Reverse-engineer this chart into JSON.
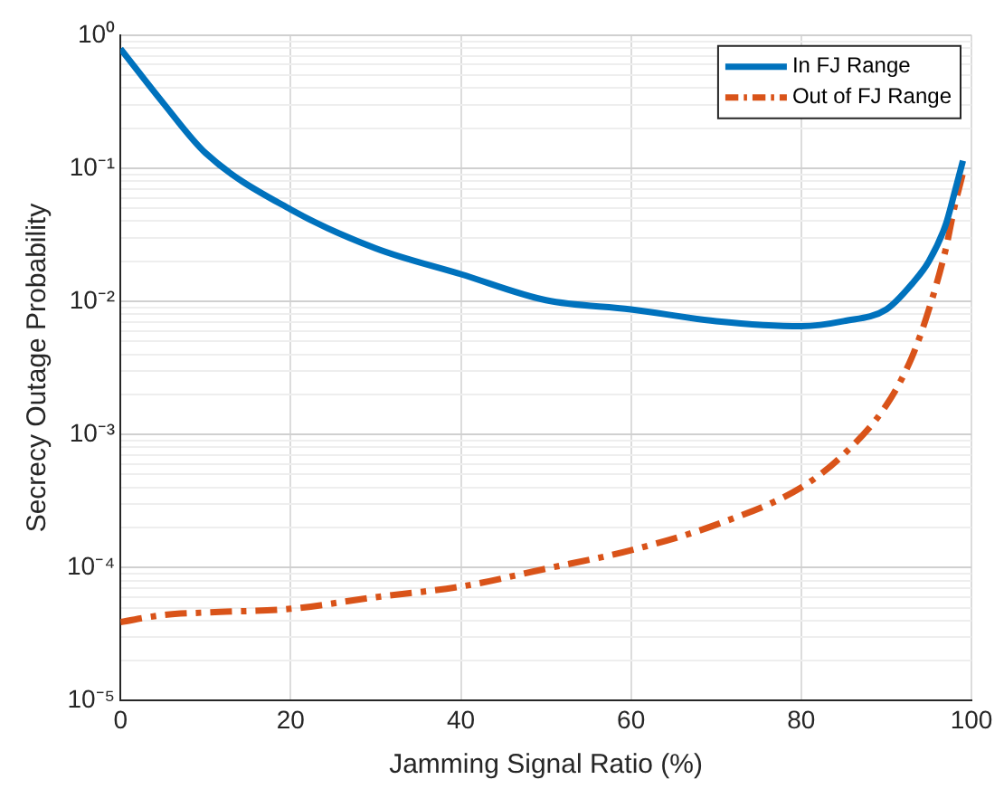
{
  "chart_data": {
    "type": "line",
    "xlabel": "Jamming Signal Ratio (%)",
    "ylabel": "Secrecy Outage Probability",
    "log": "y",
    "grid": true,
    "legend": "top right",
    "xlim": [
      0,
      100
    ],
    "xticks": [
      0,
      20,
      40,
      60,
      80,
      100
    ],
    "ylim": [
      1e-05,
      1
    ],
    "yticks": [
      {
        "value": 1e-05,
        "label": "10⁻⁵"
      },
      {
        "value": 2e-05,
        "label": null
      },
      {
        "value": 3e-05,
        "label": null
      },
      {
        "value": 4e-05,
        "label": null
      },
      {
        "value": 5e-05,
        "label": null
      },
      {
        "value": 6e-05,
        "label": null
      },
      {
        "value": 7e-05,
        "label": null
      },
      {
        "value": 8e-05,
        "label": null
      },
      {
        "value": 9e-05,
        "label": null
      },
      {
        "value": 0.0001,
        "label": "10⁻⁴"
      },
      {
        "value": 0.0002,
        "label": null
      },
      {
        "value": 0.0003,
        "label": null
      },
      {
        "value": 0.0004,
        "label": null
      },
      {
        "value": 0.0005,
        "label": null
      },
      {
        "value": 0.0006,
        "label": null
      },
      {
        "value": 0.0007,
        "label": null
      },
      {
        "value": 0.0008,
        "label": null
      },
      {
        "value": 0.0009,
        "label": null
      },
      {
        "value": 0.001,
        "label": "10⁻³"
      },
      {
        "value": 0.002,
        "label": null
      },
      {
        "value": 0.003,
        "label": null
      },
      {
        "value": 0.004,
        "label": null
      },
      {
        "value": 0.005,
        "label": null
      },
      {
        "value": 0.006,
        "label": null
      },
      {
        "value": 0.007,
        "label": null
      },
      {
        "value": 0.008,
        "label": null
      },
      {
        "value": 0.009,
        "label": null
      },
      {
        "value": 0.01,
        "label": "10⁻²"
      },
      {
        "value": 0.02,
        "label": null
      },
      {
        "value": 0.03,
        "label": null
      },
      {
        "value": 0.04,
        "label": null
      },
      {
        "value": 0.05,
        "label": null
      },
      {
        "value": 0.06,
        "label": null
      },
      {
        "value": 0.07,
        "label": null
      },
      {
        "value": 0.08,
        "label": null
      },
      {
        "value": 0.09,
        "label": null
      },
      {
        "value": 0.1,
        "label": "10⁻¹"
      },
      {
        "value": 0.2,
        "label": null
      },
      {
        "value": 0.3,
        "label": null
      },
      {
        "value": 0.4,
        "label": null
      },
      {
        "value": 0.5,
        "label": null
      },
      {
        "value": 0.6,
        "label": null
      },
      {
        "value": 0.7,
        "label": null
      },
      {
        "value": 0.8,
        "label": null
      },
      {
        "value": 0.9,
        "label": null
      },
      {
        "value": 1,
        "label": "10⁰"
      }
    ],
    "x": [
      0,
      5,
      10,
      20,
      30,
      40,
      50,
      60,
      70,
      80,
      85,
      90,
      93,
      95,
      97,
      98,
      99
    ],
    "series": [
      {
        "name": "In FJ Range",
        "color": "#0072bd",
        "line_style": "solid",
        "values": [
          0.79,
          0.31,
          0.13,
          0.049,
          0.025,
          0.016,
          0.0102,
          0.0087,
          0.0071,
          0.0065,
          0.0071,
          0.0087,
          0.0135,
          0.02,
          0.038,
          0.065,
          0.114
        ]
      },
      {
        "name": "Out of FJ Range",
        "color": "#d95319",
        "line_style": "dashed",
        "values": [
          3.9e-05,
          4.4e-05,
          4.6e-05,
          4.9e-05,
          6e-05,
          7.2e-05,
          9.8e-05,
          0.000135,
          0.00021,
          0.0004,
          0.00071,
          0.00166,
          0.0038,
          0.0087,
          0.025,
          0.051,
          0.092
        ]
      }
    ]
  }
}
